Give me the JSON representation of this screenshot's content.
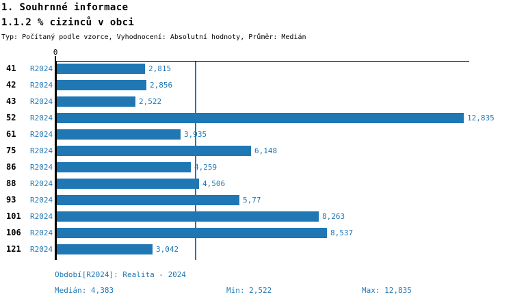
{
  "header": {
    "title": "1. Souhrnné informace",
    "subtitle": "1.1.2 % cizinců v obci",
    "meta": "Typ: Počítaný podle vzorce, Vyhodnocení: Absolutní hodnoty, Průměr: Medián"
  },
  "chart_data": {
    "type": "bar",
    "orientation": "horizontal",
    "title": "1.1.2 % cizinců v obci",
    "categories": [
      "41",
      "42",
      "43",
      "52",
      "61",
      "75",
      "86",
      "88",
      "93",
      "101",
      "106",
      "121"
    ],
    "period_label": "R2024",
    "values": [
      2.815,
      2.856,
      2.522,
      12.835,
      3.935,
      6.148,
      4.259,
      4.506,
      5.77,
      8.263,
      8.537,
      3.042
    ],
    "value_labels": [
      "2,815",
      "2,856",
      "2,522",
      "12,835",
      "3,935",
      "6,148",
      "4,259",
      "4,506",
      "5,77",
      "8,263",
      "8,537",
      "3,042"
    ],
    "xlim": [
      0,
      13
    ],
    "zero_label": "0",
    "median_value": 4.383,
    "grid": false,
    "legend_position": "bottom",
    "colors": {
      "bar": "#1f77b4",
      "median_line": "#1f77b4",
      "value_text": "#1f77b4",
      "period_text": "#1f77b4",
      "axis": "#000000"
    }
  },
  "legend": {
    "period": "Období[R2024]: Realita - 2024",
    "median": "Medián: 4,383",
    "min": "Min: 2,522",
    "max": "Max: 12,835"
  }
}
